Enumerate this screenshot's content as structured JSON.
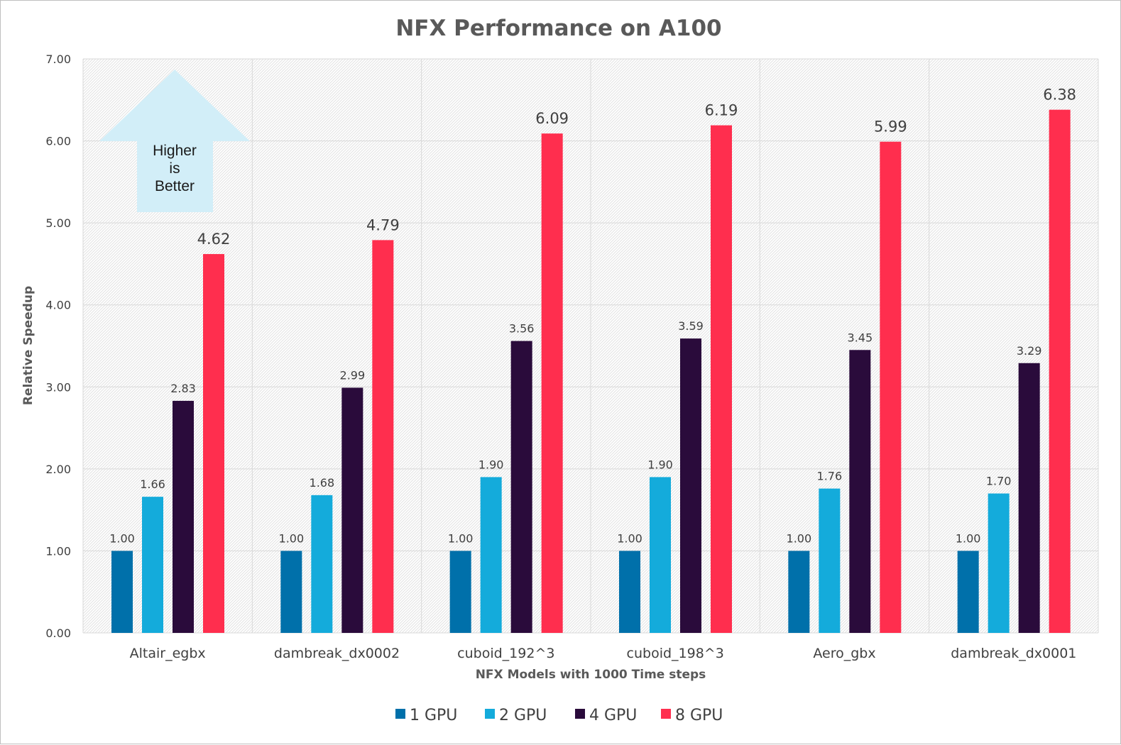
{
  "chart_data": {
    "type": "bar",
    "title": "NFX Performance on A100",
    "xlabel": "NFX Models with 1000 Time steps",
    "ylabel": "Relative Speedup",
    "ylim": [
      0,
      7
    ],
    "yticks": [
      "0.00",
      "1.00",
      "2.00",
      "3.00",
      "4.00",
      "5.00",
      "6.00",
      "7.00"
    ],
    "grid": true,
    "legend_position": "bottom",
    "categories": [
      "Altair_egbx",
      "dambreak_dx0002",
      "cuboid_192^3",
      "cuboid_198^3",
      "Aero_gbx",
      "dambreak_dx0001"
    ],
    "series": [
      {
        "name": "1 GPU",
        "color": "#0070AA",
        "values": [
          1.0,
          1.0,
          1.0,
          1.0,
          1.0,
          1.0
        ]
      },
      {
        "name": "2 GPU",
        "color": "#14ABDB",
        "values": [
          1.66,
          1.68,
          1.9,
          1.9,
          1.76,
          1.7
        ]
      },
      {
        "name": "4 GPU",
        "color": "#2A0B3B",
        "values": [
          2.83,
          2.99,
          3.56,
          3.59,
          3.45,
          3.29
        ]
      },
      {
        "name": "8 GPU",
        "color": "#FF2E4E",
        "values": [
          4.62,
          4.79,
          6.09,
          6.19,
          5.99,
          6.38
        ]
      }
    ],
    "annotation": {
      "lines": [
        "Higher",
        "is",
        "Better"
      ],
      "shape": "up-arrow",
      "color": "#D2EEF8"
    }
  }
}
